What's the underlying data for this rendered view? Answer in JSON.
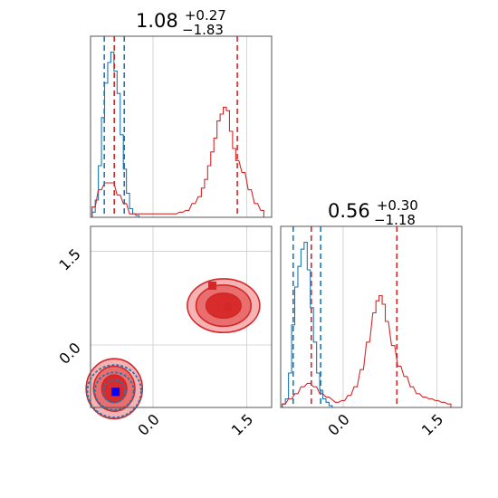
{
  "chart_data": {
    "type": "corner",
    "colors": {
      "blue": "#1f77b4",
      "red": "#d62728",
      "grid": "#cccccc"
    },
    "axis_range": [
      -1.0,
      1.9
    ],
    "tick_values": [
      0.0,
      1.5
    ],
    "tick_labels": [
      "0.0",
      "1.5"
    ],
    "parameters": [
      {
        "title_main": "1.08",
        "title_plus": "+0.27",
        "title_minus": "−1.83",
        "blue_quantiles": [
          -0.78,
          -0.46
        ],
        "red_quantiles": [
          -0.62,
          1.35
        ],
        "blue_hist_centers": [
          -0.95,
          -0.9,
          -0.85,
          -0.8,
          -0.75,
          -0.7,
          -0.65,
          -0.6,
          -0.55,
          -0.5,
          -0.45,
          -0.4,
          -0.35,
          -0.3,
          -0.25
        ],
        "blue_hist_counts": [
          0.03,
          0.1,
          0.3,
          0.58,
          0.78,
          0.9,
          0.96,
          0.85,
          0.72,
          0.48,
          0.28,
          0.14,
          0.05,
          0.02,
          0.01
        ],
        "red_hist_centers": [
          -0.95,
          -0.85,
          -0.75,
          -0.65,
          -0.55,
          -0.45,
          -0.35,
          0.35,
          0.45,
          0.55,
          0.65,
          0.75,
          0.8,
          0.85,
          0.9,
          0.95,
          1.0,
          1.05,
          1.1,
          1.15,
          1.2,
          1.25,
          1.3,
          1.35,
          1.45,
          1.55,
          1.65,
          1.75
        ],
        "red_hist_counts": [
          0.06,
          0.16,
          0.2,
          0.2,
          0.13,
          0.08,
          0.02,
          0.02,
          0.03,
          0.04,
          0.08,
          0.12,
          0.17,
          0.22,
          0.3,
          0.38,
          0.46,
          0.56,
          0.6,
          0.64,
          0.62,
          0.5,
          0.4,
          0.33,
          0.26,
          0.16,
          0.08,
          0.04
        ]
      },
      {
        "title_main": "0.56",
        "title_plus": "+0.30",
        "title_minus": "−1.18",
        "blue_quantiles": [
          -0.8,
          -0.36
        ],
        "red_quantiles": [
          -0.51,
          0.86
        ],
        "blue_hist_centers": [
          -0.95,
          -0.9,
          -0.85,
          -0.8,
          -0.75,
          -0.7,
          -0.65,
          -0.6,
          -0.55,
          -0.5,
          -0.45,
          -0.4,
          -0.35,
          -0.3,
          -0.25,
          -0.2
        ],
        "blue_hist_counts": [
          0.02,
          0.05,
          0.2,
          0.48,
          0.7,
          0.82,
          0.92,
          0.96,
          0.8,
          0.58,
          0.38,
          0.2,
          0.1,
          0.05,
          0.03,
          0.01
        ],
        "red_hist_centers": [
          -0.95,
          -0.85,
          -0.75,
          -0.65,
          -0.55,
          -0.45,
          -0.35,
          -0.25,
          -0.1,
          0.0,
          0.1,
          0.2,
          0.3,
          0.4,
          0.5,
          0.55,
          0.6,
          0.65,
          0.7,
          0.8,
          0.9,
          1.0,
          1.1,
          1.2,
          1.3,
          1.4,
          1.5,
          1.6,
          1.7
        ],
        "red_hist_counts": [
          0.02,
          0.05,
          0.08,
          0.12,
          0.14,
          0.12,
          0.08,
          0.06,
          0.03,
          0.04,
          0.07,
          0.12,
          0.22,
          0.38,
          0.55,
          0.62,
          0.65,
          0.6,
          0.5,
          0.36,
          0.24,
          0.18,
          0.12,
          0.08,
          0.06,
          0.05,
          0.04,
          0.03,
          0.02
        ]
      }
    ],
    "joint_markers": {
      "blue": [
        {
          "x": -0.6,
          "y": -0.75
        }
      ],
      "red": [
        {
          "x": -0.6,
          "y": -0.75
        },
        {
          "x": 0.95,
          "y": 0.95
        },
        {
          "x": 1.2,
          "y": 0.6
        }
      ]
    },
    "contours": [
      {
        "color": "red",
        "cx": -0.62,
        "cy": -0.7,
        "rx": [
          0.45,
          0.33,
          0.2
        ],
        "ry": [
          0.48,
          0.36,
          0.22
        ]
      },
      {
        "color": "blue",
        "cx": -0.62,
        "cy": -0.74,
        "rx": [
          0.43,
          0.31,
          0.18
        ],
        "ry": [
          0.42,
          0.3,
          0.18
        ]
      },
      {
        "color": "red",
        "cx": 1.13,
        "cy": 0.63,
        "rx": [
          0.58,
          0.44,
          0.28
        ],
        "ry": [
          0.43,
          0.33,
          0.2
        ]
      }
    ]
  }
}
